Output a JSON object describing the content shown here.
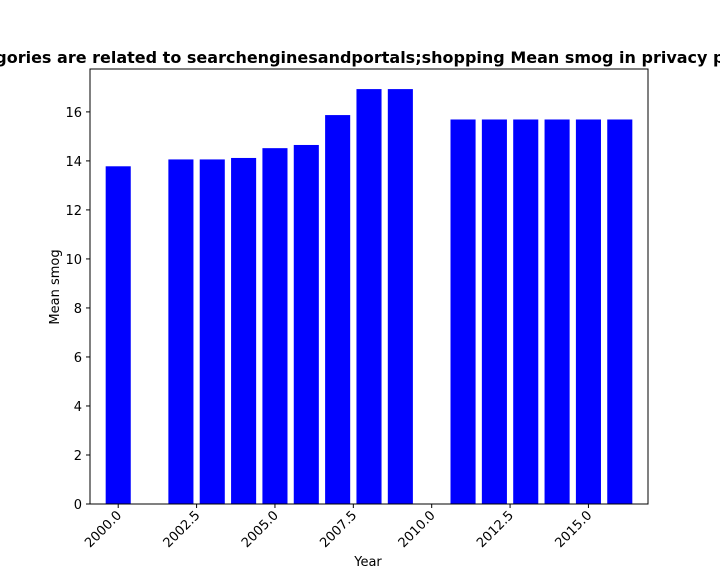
{
  "chart_data": {
    "type": "bar",
    "title": "Categories are related to searchenginesandportals;shopping Mean smog in privacy policies",
    "xlabel": "Year",
    "ylabel": "Mean smog",
    "x": [
      2000,
      2002,
      2003,
      2004,
      2005,
      2006,
      2007,
      2008,
      2009,
      2011,
      2012,
      2013,
      2014,
      2015,
      2016
    ],
    "values": [
      13.78,
      14.06,
      14.06,
      14.12,
      14.52,
      14.65,
      15.87,
      16.93,
      16.93,
      15.69,
      15.69,
      15.69,
      15.69,
      15.69,
      15.69
    ],
    "xlim": [
      1999.1,
      2016.9
    ],
    "ylim": [
      0,
      17.75
    ],
    "xticks": [
      2000.0,
      2002.5,
      2005.0,
      2007.5,
      2010.0,
      2012.5,
      2015.0
    ],
    "xtick_labels": [
      "2000.0",
      "2002.5",
      "2005.0",
      "2007.5",
      "2010.0",
      "2012.5",
      "2015.0"
    ],
    "yticks": [
      0,
      2,
      4,
      6,
      8,
      10,
      12,
      14,
      16
    ],
    "ytick_labels": [
      "0",
      "2",
      "4",
      "6",
      "8",
      "10",
      "12",
      "14",
      "16"
    ],
    "bar_color": "#0000ff",
    "grid": false,
    "legend": "none"
  }
}
